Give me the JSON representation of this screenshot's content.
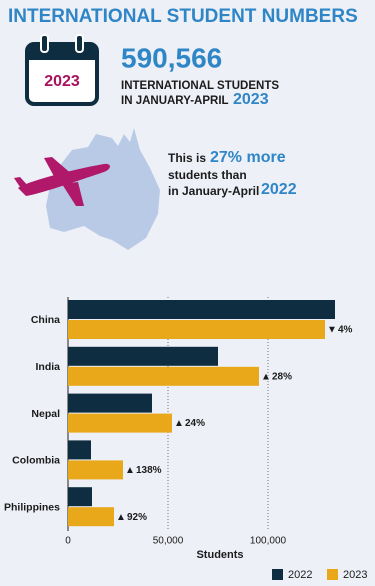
{
  "header": {
    "title": "INTERNATIONAL STUDENT NUMBERS",
    "calendar_year": "2023",
    "total": "590,566",
    "total_line1": "INTERNATIONAL STUDENTS",
    "total_line2": "IN JANUARY-APRIL",
    "total_year": "2023",
    "compare_prefix": "This is",
    "compare_highlight": "27% more",
    "compare_line2": "students than",
    "compare_line3": "in January-April",
    "compare_year": "2022"
  },
  "chart_data": {
    "type": "hbar",
    "categories": [
      "China",
      "India",
      "Nepal",
      "Colombia",
      "Philippines"
    ],
    "series": [
      {
        "name": "2022",
        "color": "#0f2d40",
        "values": [
          133500,
          75000,
          42000,
          11500,
          12000
        ]
      },
      {
        "name": "2023",
        "color": "#e8a819",
        "values": [
          128500,
          95500,
          52000,
          27500,
          23000
        ],
        "change_arrows": [
          "▼",
          "▲",
          "▲",
          "▲",
          "▲"
        ],
        "change_labels": [
          "4%",
          "28%",
          "24%",
          "138%",
          "92%"
        ]
      }
    ],
    "xlim": [
      0,
      150000
    ],
    "xticks": [
      0,
      {
        "value": 50000,
        "label": "50,000"
      },
      {
        "value": 100000,
        "label": "100,000"
      }
    ],
    "xlabel": "Students",
    "grid": true,
    "legend": "bottom-right"
  }
}
